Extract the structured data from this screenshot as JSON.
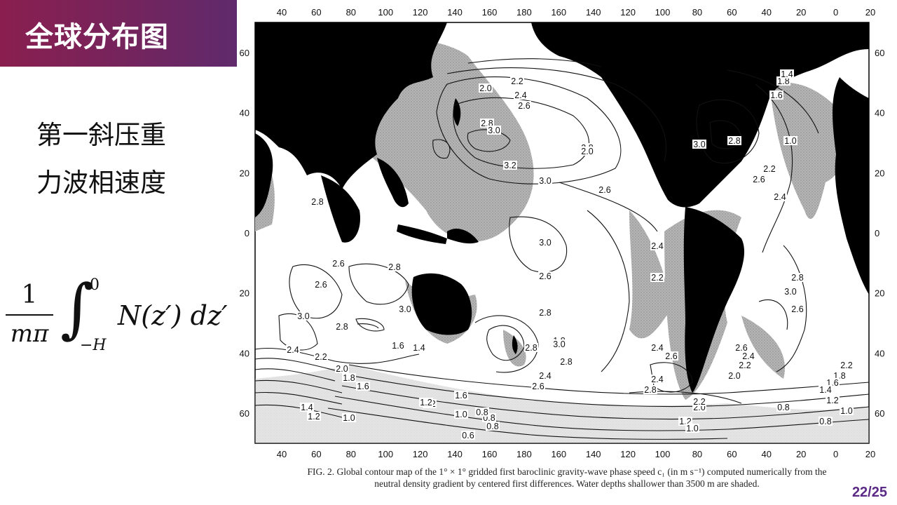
{
  "slide": {
    "title": "全球分布图",
    "label_line1": "第一斜压重",
    "label_line2": "力波相速度",
    "page_number": "22/25"
  },
  "formula": {
    "numerator": "1",
    "denominator": "mπ",
    "upper_limit": "0",
    "lower_limit": "−H",
    "integrand": "N(z′) dz′"
  },
  "map": {
    "top_axis_labels": [
      "40",
      "60",
      "80",
      "100",
      "120",
      "140",
      "160",
      "180",
      "160",
      "140",
      "120",
      "100",
      "80",
      "60",
      "40",
      "20",
      "0",
      "20"
    ],
    "bottom_axis_labels": [
      "40",
      "60",
      "80",
      "100",
      "120",
      "140",
      "160",
      "180",
      "160",
      "140",
      "120",
      "100",
      "80",
      "60",
      "40",
      "20",
      "0",
      "20"
    ],
    "left_axis_labels": [
      "60",
      "40",
      "20",
      "0",
      "20",
      "40",
      "60"
    ],
    "right_axis_labels": [
      "60",
      "40",
      "20",
      "0",
      "20",
      "40",
      "60"
    ],
    "contour_labels": [
      "2.2",
      "2.0",
      "2.4",
      "2.6",
      "2.8",
      "3.0",
      "3.2",
      "3.0",
      "2.8",
      "2.6",
      "2.8",
      "3.0",
      "2.8",
      "2.6",
      "3.0",
      "2.8",
      "2.6",
      "2.4",
      "2.2",
      "2.0",
      "1.4",
      "1.2",
      "1.0",
      "0.8",
      "1.6",
      "1.8",
      "2.4",
      "2.6",
      "2.8",
      "3.0",
      "2.6",
      "2.4",
      "2.2",
      "2.0",
      "1.8",
      "1.6",
      "1.4",
      "1.2",
      "1.0",
      "0.8",
      "0.6",
      "3.0",
      "2.8",
      "2.6",
      "2.4",
      "2.2",
      "1.8",
      "1.6",
      "1.4",
      "1.0",
      "2.8",
      "3.0",
      "2.6",
      "2.8",
      "2.0",
      "2.2",
      "1.8",
      "1.6",
      "1.4",
      "1.2",
      "1.0",
      "0.8",
      "2.6",
      "2.4",
      "2.2",
      "2.0",
      "2.8",
      "3.0",
      "1.6",
      "1.2",
      "0.8",
      "2.4",
      "2.6",
      "2.8",
      "2.4",
      "2.2",
      "1.2",
      "1.0",
      "0.8"
    ],
    "caption_line1": "FIG. 2. Global contour map of the 1° × 1° gridded first baroclinic gravity-wave phase speed c₁ (in m s⁻¹) computed numerically from the",
    "caption_line2": "neutral density gradient by centered first differences. Water depths shallower than 3500 m are shaded.",
    "colors": {
      "land": "#000000",
      "shelf_shade": "#a9a9a9",
      "ocean": "#ffffff",
      "title_bg": "#7a2458",
      "page_num": "#5b2a86"
    }
  }
}
